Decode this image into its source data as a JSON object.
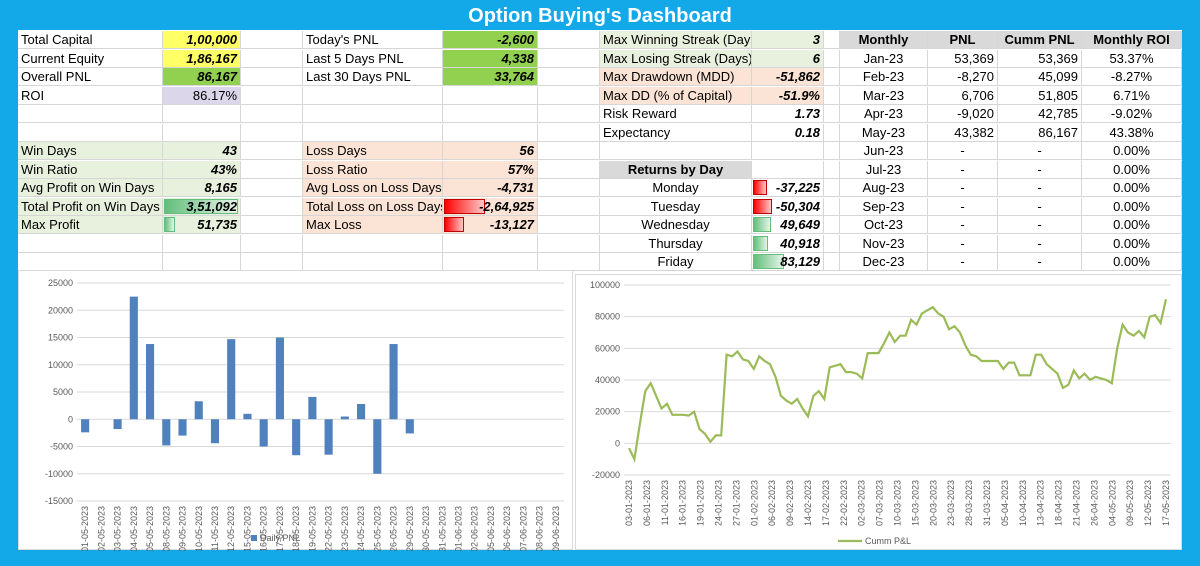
{
  "title": "Option Buying's Dashboard",
  "block1": [
    {
      "label": "Total Capital",
      "value": "1,00,000",
      "color": "#ffff66"
    },
    {
      "label": "Current Equity",
      "value": "1,86,167",
      "color": "#ffff66"
    },
    {
      "label": "Overall PNL",
      "value": "86,167",
      "color": "#92d050"
    },
    {
      "label": "ROI",
      "value": "86.17%",
      "color": "#dcd6ea"
    }
  ],
  "block2": [
    {
      "label": "Today's PNL",
      "value": "-2,600"
    },
    {
      "label": "Last 5 Days PNL",
      "value": "4,338"
    },
    {
      "label": "Last 30 Days PNL",
      "value": "33,764"
    }
  ],
  "block3": [
    {
      "label": "Max Winning Streak (Days)",
      "value": "3"
    },
    {
      "label": "Max Losing Streak (Days)",
      "value": "6"
    },
    {
      "label": "Max Drawdown (MDD)",
      "value": "-51,862"
    },
    {
      "label": "Max DD (% of Capital)",
      "value": "-51.9%"
    },
    {
      "label": "Risk Reward",
      "value": "1.73"
    },
    {
      "label": "Expectancy",
      "value": "0.18"
    }
  ],
  "wins": [
    {
      "label": "Win Days",
      "value": "43"
    },
    {
      "label": "Win Ratio",
      "value": "43%"
    },
    {
      "label": "Avg Profit on Win Days",
      "value": "8,165"
    },
    {
      "label": "Total Profit on Win Days",
      "value": "3,51,092"
    },
    {
      "label": "Max Profit",
      "value": "51,735"
    }
  ],
  "losses": [
    {
      "label": "Loss Days",
      "value": "56"
    },
    {
      "label": "Loss Ratio",
      "value": "57%"
    },
    {
      "label": "Avg Loss on Loss Days",
      "value": "-4,731"
    },
    {
      "label": "Total Loss on Loss Days",
      "value": "-2,64,925"
    },
    {
      "label": "Max Loss",
      "value": "-13,127"
    }
  ],
  "returns_by_day": {
    "header": "Returns by Day",
    "rows": [
      {
        "day": "Monday",
        "value": "-37,225"
      },
      {
        "day": "Tuesday",
        "value": "-50,304"
      },
      {
        "day": "Wednesday",
        "value": "49,649"
      },
      {
        "day": "Thursday",
        "value": "40,918"
      },
      {
        "day": "Friday",
        "value": "83,129"
      }
    ]
  },
  "monthly": {
    "headers": [
      "Monthly",
      "PNL",
      "Cumm PNL",
      "Monthly ROI"
    ],
    "rows": [
      [
        "Jan-23",
        "53,369",
        "53,369",
        "53.37%"
      ],
      [
        "Feb-23",
        "-8,270",
        "45,099",
        "-8.27%"
      ],
      [
        "Mar-23",
        "6,706",
        "51,805",
        "6.71%"
      ],
      [
        "Apr-23",
        "-9,020",
        "42,785",
        "-9.02%"
      ],
      [
        "May-23",
        "43,382",
        "86,167",
        "43.38%"
      ],
      [
        "Jun-23",
        "-",
        "-",
        "0.00%"
      ],
      [
        "Jul-23",
        "-",
        "-",
        "0.00%"
      ],
      [
        "Aug-23",
        "-",
        "-",
        "0.00%"
      ],
      [
        "Sep-23",
        "-",
        "-",
        "0.00%"
      ],
      [
        "Oct-23",
        "-",
        "-",
        "0.00%"
      ],
      [
        "Nov-23",
        "-",
        "-",
        "0.00%"
      ],
      [
        "Dec-23",
        "-",
        "-",
        "0.00%"
      ]
    ]
  },
  "chart_data": [
    {
      "type": "bar",
      "legend": "Daily PNL",
      "legend_position": "bottom",
      "ylim": [
        -15000,
        25000
      ],
      "yticks": [
        25000,
        20000,
        15000,
        10000,
        5000,
        0,
        -5000,
        -10000,
        -15000
      ],
      "grid": true,
      "color": "#4f81bd",
      "categories": [
        "01-05-2023",
        "02-05-2023",
        "03-05-2023",
        "04-05-2023",
        "05-05-2023",
        "08-05-2023",
        "09-05-2023",
        "10-05-2023",
        "11-05-2023",
        "12-05-2023",
        "15-05-2023",
        "16-05-2023",
        "17-05-2023",
        "18-05-2023",
        "19-05-2023",
        "22-05-2023",
        "23-05-2023",
        "24-05-2023",
        "25-05-2023",
        "26-05-2023",
        "29-05-2023",
        "30-05-2023",
        "31-05-2023",
        "01-06-2023",
        "02-06-2023",
        "05-06-2023",
        "06-06-2023",
        "07-06-2023",
        "08-06-2023",
        "09-06-2023"
      ],
      "values": [
        -2400,
        0,
        -1800,
        22500,
        13800,
        -4800,
        -3000,
        3300,
        -4400,
        14700,
        1000,
        -5000,
        15000,
        -6600,
        4100,
        -6500,
        500,
        2800,
        -10000,
        13800,
        -2600,
        0,
        0,
        0,
        0,
        0,
        0,
        0,
        0,
        0
      ]
    },
    {
      "type": "line",
      "legend": "Cumm P&L",
      "legend_position": "bottom",
      "ylim": [
        -20000,
        100000
      ],
      "yticks": [
        100000,
        80000,
        60000,
        40000,
        20000,
        0,
        -20000
      ],
      "grid": true,
      "color": "#9bbb59",
      "tick_labels": [
        "03-01-2023",
        "06-01-2023",
        "11-01-2023",
        "16-01-2023",
        "19-01-2023",
        "24-01-2023",
        "27-01-2023",
        "01-02-2023",
        "06-02-2023",
        "09-02-2023",
        "14-02-2023",
        "17-02-2023",
        "22-02-2023",
        "02-03-2023",
        "07-03-2023",
        "10-03-2023",
        "15-03-2023",
        "20-03-2023",
        "23-03-2023",
        "28-03-2023",
        "31-03-2023",
        "05-04-2023",
        "10-04-2023",
        "13-04-2023",
        "18-04-2023",
        "21-04-2023",
        "26-04-2023",
        "04-05-2023",
        "09-05-2023",
        "12-05-2023",
        "17-05-2023"
      ],
      "values": [
        -3000,
        -10000,
        12000,
        33000,
        38000,
        30000,
        22000,
        25000,
        18000,
        18000,
        18000,
        17500,
        20000,
        9000,
        6000,
        1000,
        5000,
        5000,
        56000,
        55000,
        58000,
        53000,
        52000,
        47000,
        55000,
        52000,
        50000,
        42000,
        30000,
        27000,
        25000,
        28000,
        22000,
        17000,
        30000,
        33000,
        28000,
        48000,
        49000,
        50000,
        45000,
        45000,
        44000,
        41000,
        57000,
        57000,
        57000,
        63000,
        70000,
        64000,
        68000,
        68000,
        78000,
        75000,
        82000,
        84000,
        86000,
        82000,
        80000,
        72000,
        74000,
        70000,
        62000,
        56000,
        55000,
        52000,
        52000,
        52000,
        52000,
        47000,
        51000,
        51000,
        43000,
        43000,
        43000,
        56000,
        56000,
        50000,
        47000,
        44000,
        35000,
        37000,
        46000,
        41000,
        44000,
        40000,
        42000,
        41000,
        40000,
        38000,
        60000,
        75000,
        70000,
        68000,
        71000,
        67000,
        80000,
        81000,
        76000,
        91000
      ]
    }
  ]
}
